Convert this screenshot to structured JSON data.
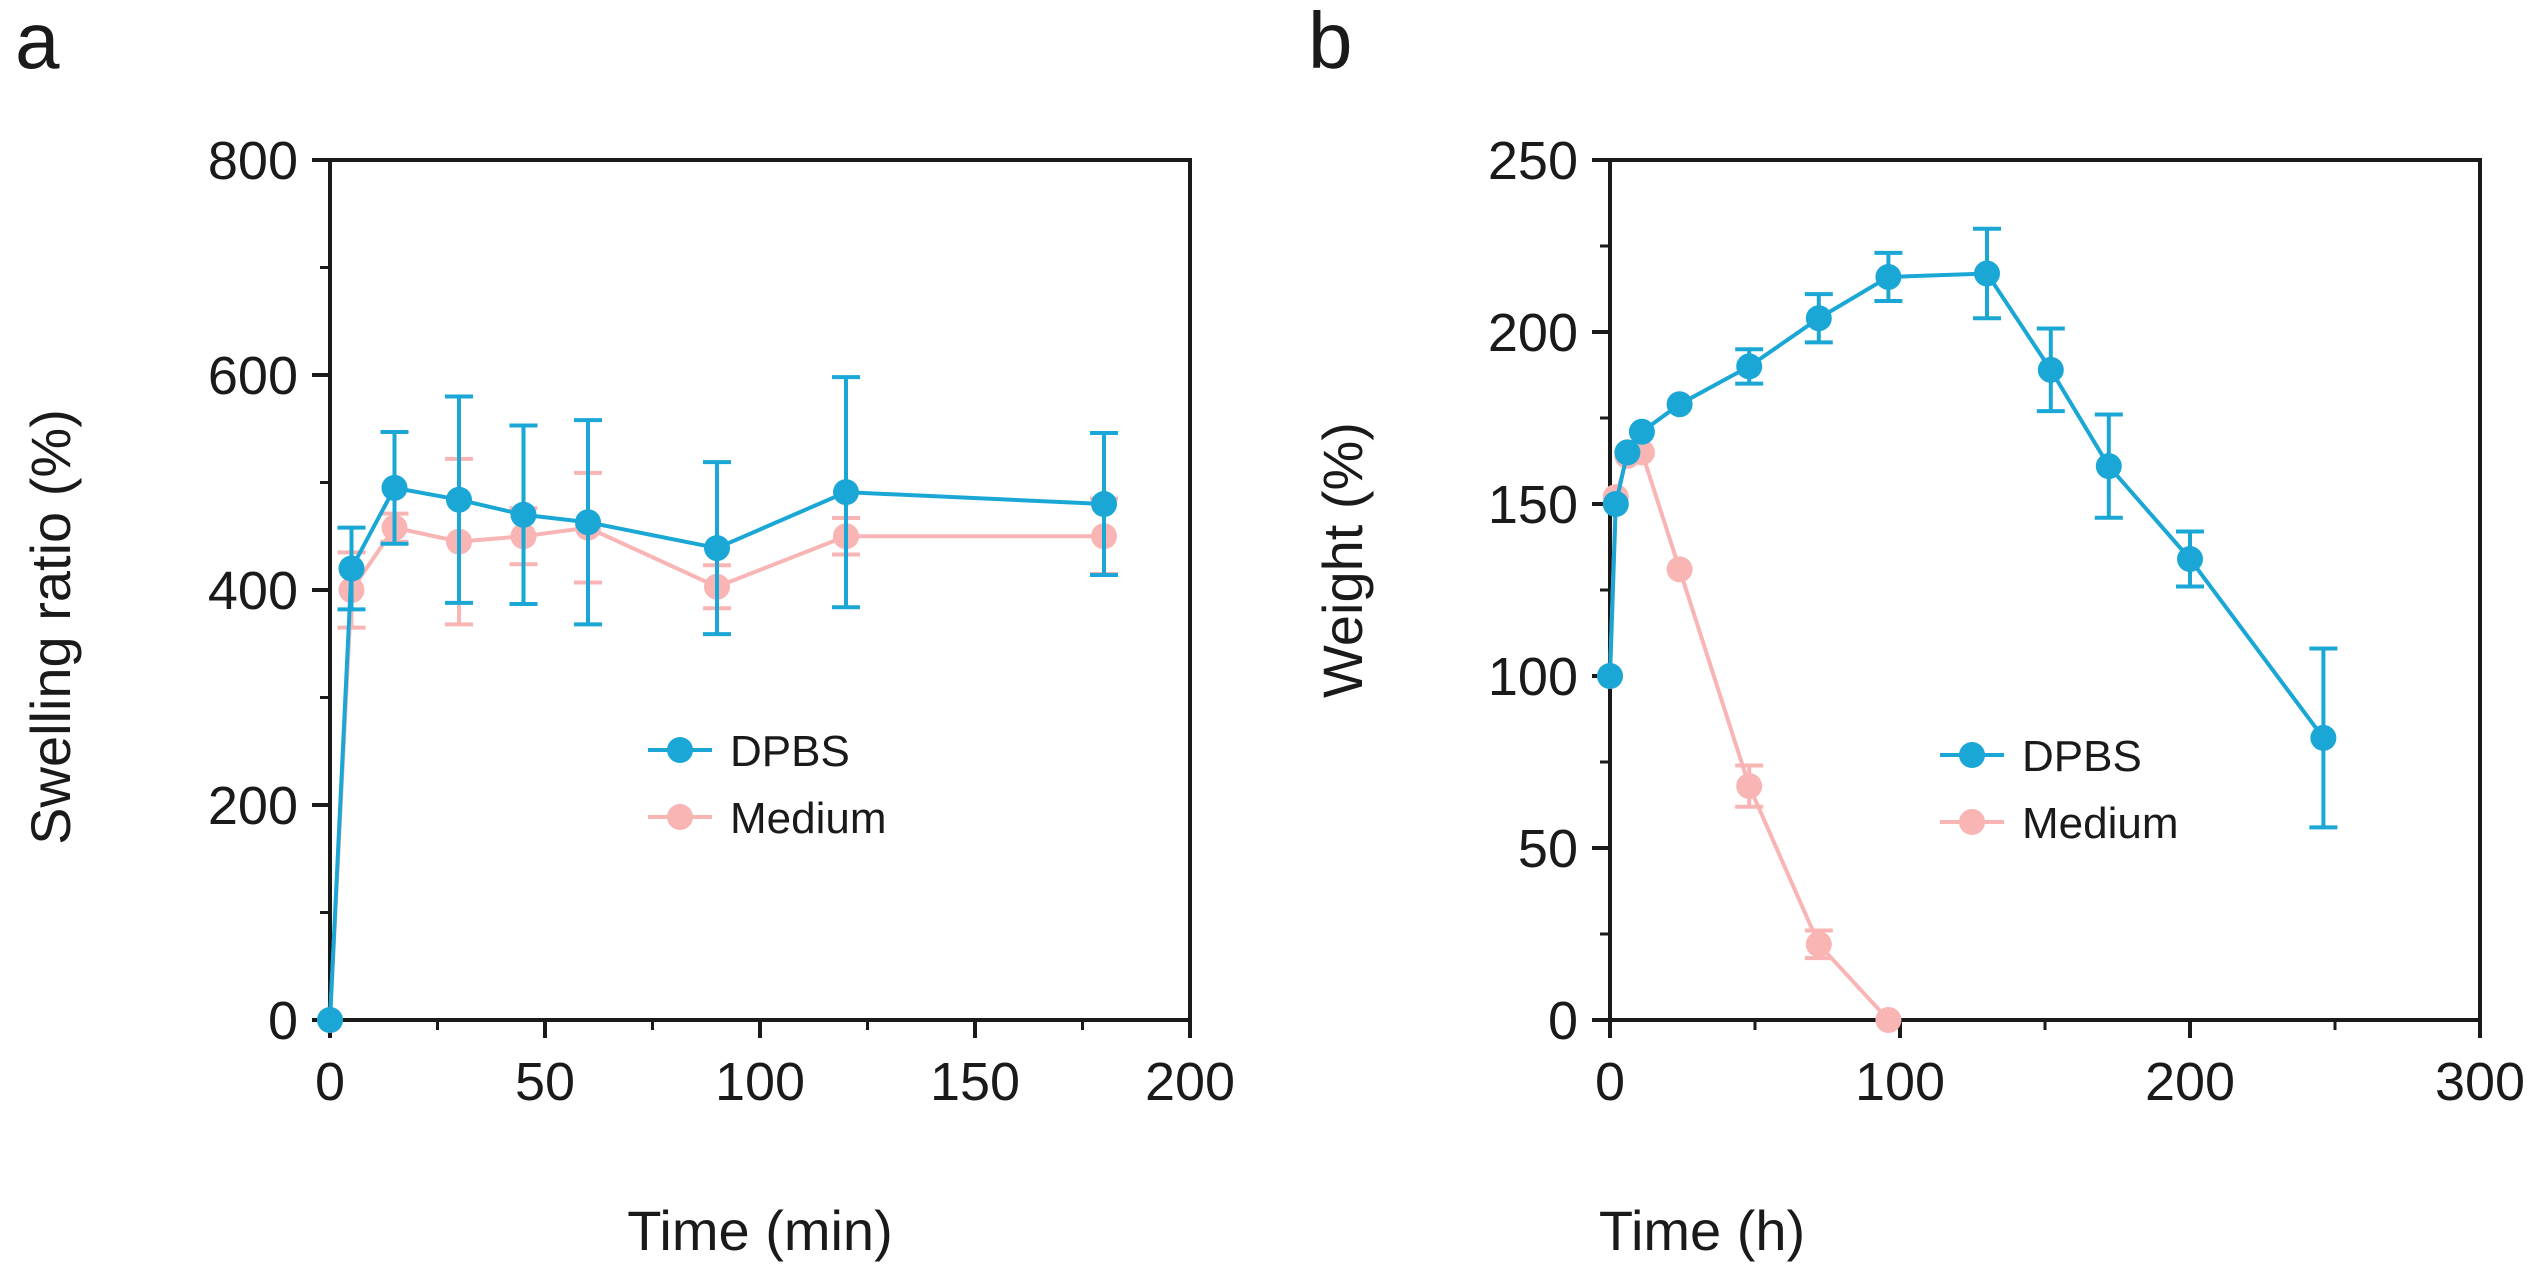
{
  "chart_data": [
    {
      "panel_label": "a",
      "type": "line",
      "title": "",
      "xlabel": "Time (min)",
      "ylabel": "Swelling ratio (%)",
      "xlim": [
        0,
        200
      ],
      "ylim": [
        0,
        800
      ],
      "xticks": [
        0,
        50,
        100,
        150,
        200
      ],
      "yticks": [
        0,
        200,
        400,
        600,
        800
      ],
      "legend_position": "center-right",
      "series": [
        {
          "name": "DPBS",
          "color": "#1aa7d6",
          "x": [
            0,
            5,
            15,
            30,
            45,
            60,
            90,
            120,
            180
          ],
          "y": [
            0,
            420,
            495,
            484,
            470,
            463,
            439,
            491,
            480
          ],
          "error": [
            0,
            38,
            52,
            96,
            83,
            95,
            80,
            107,
            66
          ]
        },
        {
          "name": "Medium",
          "color": "#f9b4b4",
          "x": [
            0,
            5,
            15,
            30,
            45,
            60,
            90,
            120,
            180
          ],
          "y": [
            0,
            400,
            458,
            445,
            450,
            458,
            403,
            450,
            450
          ],
          "error": [
            0,
            35,
            13,
            77,
            26,
            51,
            20,
            17,
            35
          ]
        }
      ]
    },
    {
      "panel_label": "b",
      "type": "line",
      "title": "",
      "xlabel": "Time (h)",
      "ylabel": "Weight (%)",
      "xlim": [
        0,
        300
      ],
      "ylim": [
        0,
        250
      ],
      "xticks": [
        0,
        100,
        200,
        300
      ],
      "yticks": [
        0,
        50,
        100,
        150,
        200,
        250
      ],
      "legend_position": "center-right",
      "series": [
        {
          "name": "DPBS",
          "color": "#1aa7d6",
          "x": [
            0,
            2,
            6,
            11,
            24,
            48,
            72,
            96,
            130,
            152,
            172,
            200,
            246
          ],
          "y": [
            100,
            150,
            165,
            171,
            179,
            190,
            204,
            216,
            217,
            189,
            161,
            134,
            82
          ],
          "error": [
            0,
            0,
            0,
            0,
            0,
            5,
            7,
            7,
            13,
            12,
            15,
            8,
            26
          ]
        },
        {
          "name": "Medium",
          "color": "#f9b4b4",
          "x": [
            0,
            2,
            6,
            11,
            24,
            48,
            72,
            96
          ],
          "y": [
            100,
            152,
            164,
            165,
            131,
            68,
            22,
            0
          ],
          "error": [
            0,
            0,
            0,
            0,
            0,
            6,
            4,
            0
          ]
        }
      ]
    }
  ]
}
